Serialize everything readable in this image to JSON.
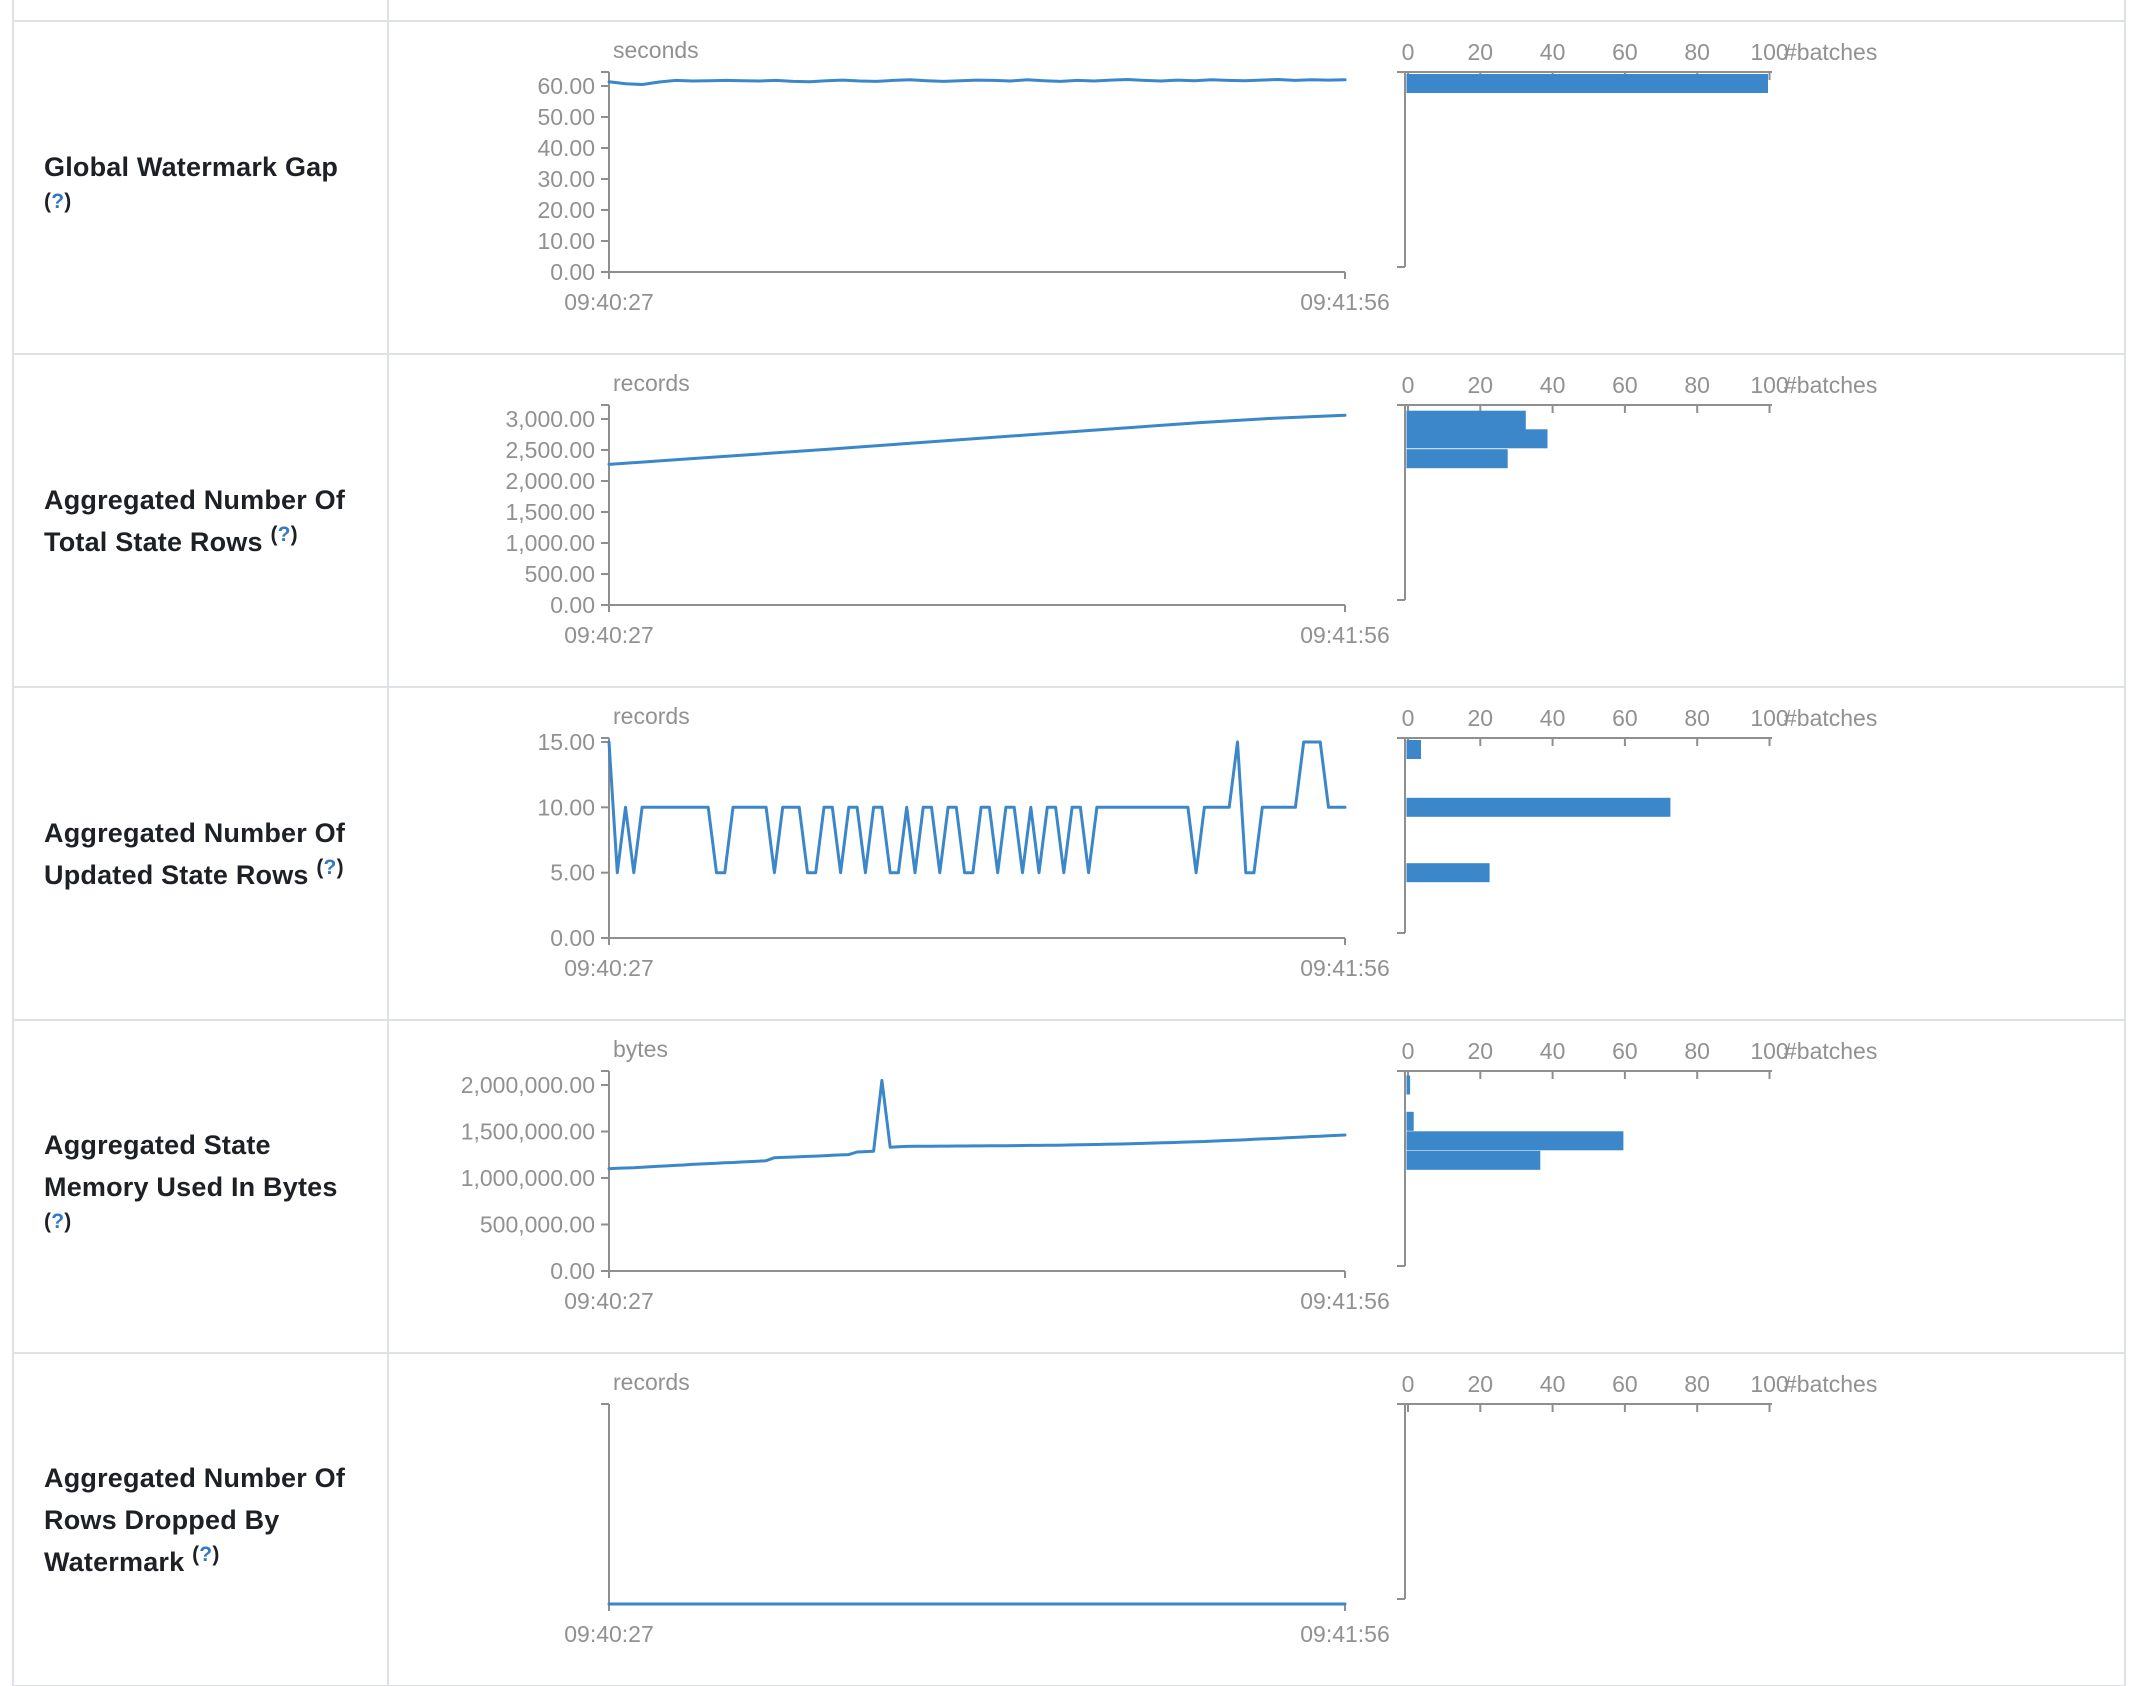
{
  "theme": {
    "accent_blue": "#3b87c9",
    "axis_gray": "#8f8f8f",
    "chart_text_gray": "#919191",
    "label_dark": "#1d2125",
    "help_blue": "#3178c6",
    "row_border": "#dee2e6"
  },
  "help_badge": {
    "open": "(",
    "mark": "?",
    "close": ")"
  },
  "chart_data": [
    {
      "label": "Global Watermark Gap",
      "timeline": {
        "type": "line",
        "unit": "seconds",
        "x_ticks": [
          "09:40:27",
          "09:41:56"
        ],
        "ylim": [
          0,
          60
        ],
        "y_ticks": [
          {
            "v": 0,
            "label": "0.00"
          },
          {
            "v": 10,
            "label": "10.00"
          },
          {
            "v": 20,
            "label": "20.00"
          },
          {
            "v": 30,
            "label": "30.00"
          },
          {
            "v": 40,
            "label": "40.00"
          },
          {
            "v": 50,
            "label": "50.00"
          },
          {
            "v": 60,
            "label": "60.00"
          }
        ],
        "values": [
          61.4,
          60.7,
          60.5,
          61.3,
          61.8,
          61.6,
          61.7,
          61.8,
          61.7,
          61.6,
          61.8,
          61.5,
          61.4,
          61.7,
          61.9,
          61.6,
          61.5,
          61.8,
          62.0,
          61.7,
          61.5,
          61.7,
          61.9,
          61.8,
          61.6,
          62.0,
          61.7,
          61.5,
          61.8,
          61.6,
          61.9,
          62.1,
          61.8,
          61.6,
          61.9,
          61.7,
          62.0,
          61.8,
          61.7,
          61.9,
          62.1,
          61.8,
          62.0,
          61.9,
          62.0
        ]
      },
      "histogram": {
        "type": "bar",
        "xlabel": "#batches",
        "xlim": [
          0,
          100
        ],
        "x_ticks": [
          0,
          20,
          40,
          60,
          80,
          100
        ],
        "bins": [
          {
            "center": 61.5,
            "count": 100
          }
        ]
      }
    },
    {
      "label": "Aggregated Number Of Total State Rows",
      "timeline": {
        "type": "line",
        "unit": "records",
        "x_ticks": [
          "09:40:27",
          "09:41:56"
        ],
        "ylim": [
          0,
          3000
        ],
        "y_ticks": [
          {
            "v": 0,
            "label": "0.00"
          },
          {
            "v": 500,
            "label": "500.00"
          },
          {
            "v": 1000,
            "label": "1,000.00"
          },
          {
            "v": 1500,
            "label": "1,500.00"
          },
          {
            "v": 2000,
            "label": "2,000.00"
          },
          {
            "v": 2500,
            "label": "2,500.00"
          },
          {
            "v": 3000,
            "label": "3,000.00"
          }
        ],
        "values": [
          2268,
          2350,
          2432,
          2515,
          2600,
          2685,
          2770,
          2855,
          2940,
          3010,
          3060
        ]
      },
      "histogram": {
        "type": "bar",
        "xlabel": "#batches",
        "xlim": [
          0,
          100
        ],
        "x_ticks": [
          0,
          20,
          40,
          60,
          80,
          100
        ],
        "bins": [
          {
            "center": 2980,
            "count": 33
          },
          {
            "center": 2680,
            "count": 39
          },
          {
            "center": 2360,
            "count": 28
          }
        ]
      }
    },
    {
      "label": "Aggregated Number Of Updated State Rows",
      "timeline": {
        "type": "line",
        "unit": "records",
        "x_ticks": [
          "09:40:27",
          "09:41:56"
        ],
        "ylim": [
          0,
          15
        ],
        "y_ticks": [
          {
            "v": 0,
            "label": "0.00"
          },
          {
            "v": 5,
            "label": "5.00"
          },
          {
            "v": 10,
            "label": "10.00"
          },
          {
            "v": 15,
            "label": "15.00"
          }
        ],
        "values": [
          15,
          5,
          10,
          5,
          10,
          10,
          10,
          10,
          10,
          10,
          10,
          10,
          10,
          5,
          5,
          10,
          10,
          10,
          10,
          10,
          5,
          10,
          10,
          10,
          5,
          5,
          10,
          10,
          5,
          10,
          10,
          5,
          10,
          10,
          5,
          5,
          10,
          5,
          10,
          10,
          5,
          10,
          10,
          5,
          5,
          10,
          10,
          5,
          10,
          10,
          5,
          10,
          5,
          10,
          10,
          5,
          10,
          10,
          5,
          10,
          10,
          10,
          10,
          10,
          10,
          10,
          10,
          10,
          10,
          10,
          10,
          5,
          10,
          10,
          10,
          10,
          15,
          5,
          5,
          10,
          10,
          10,
          10,
          10,
          15,
          15,
          15,
          10,
          10,
          10
        ]
      },
      "histogram": {
        "type": "bar",
        "xlabel": "#batches",
        "xlim": [
          0,
          100
        ],
        "x_ticks": [
          0,
          20,
          40,
          60,
          80,
          100
        ],
        "bins": [
          {
            "center": 15,
            "count": 4
          },
          {
            "center": 10,
            "count": 73
          },
          {
            "center": 5,
            "count": 23
          }
        ]
      }
    },
    {
      "label": "Aggregated State Memory Used In Bytes",
      "timeline": {
        "type": "line",
        "unit": "bytes",
        "x_ticks": [
          "09:40:27",
          "09:41:56"
        ],
        "ylim": [
          0,
          2000000
        ],
        "y_ticks": [
          {
            "v": 0,
            "label": "0.00"
          },
          {
            "v": 500000,
            "label": "500,000.00"
          },
          {
            "v": 1000000,
            "label": "1,000,000.00"
          },
          {
            "v": 1500000,
            "label": "1,500,000.00"
          },
          {
            "v": 2000000,
            "label": "2,000,000.00"
          }
        ],
        "values": [
          1100000,
          1104000,
          1108000,
          1111000,
          1116000,
          1121000,
          1126000,
          1130000,
          1135000,
          1140000,
          1146000,
          1151000,
          1155000,
          1158000,
          1163000,
          1167000,
          1172000,
          1176000,
          1181000,
          1186000,
          1218000,
          1221000,
          1225000,
          1228000,
          1232000,
          1236000,
          1240000,
          1244000,
          1248000,
          1252000,
          1280000,
          1284000,
          1288000,
          2050000,
          1330000,
          1336000,
          1340000,
          1341000,
          1342000,
          1342000,
          1343000,
          1343000,
          1344000,
          1344000,
          1345000,
          1345000,
          1346000,
          1346000,
          1347000,
          1348000,
          1349000,
          1350000,
          1351000,
          1352000,
          1353000,
          1354000,
          1356000,
          1357000,
          1359000,
          1360000,
          1362000,
          1364000,
          1366000,
          1368000,
          1371000,
          1373000,
          1376000,
          1378000,
          1381000,
          1384000,
          1387000,
          1390000,
          1393000,
          1397000,
          1400000,
          1404000,
          1408000,
          1412000,
          1416000,
          1420000,
          1424000,
          1428000,
          1432000,
          1437000,
          1441000,
          1446000,
          1450000,
          1455000,
          1458000,
          1462000
        ]
      },
      "histogram": {
        "type": "bar",
        "xlabel": "#batches",
        "xlim": [
          0,
          100
        ],
        "x_ticks": [
          0,
          20,
          40,
          60,
          80,
          100
        ],
        "bins": [
          {
            "center": 2000000,
            "count": 1
          },
          {
            "center": 1610000,
            "count": 2
          },
          {
            "center": 1400000,
            "count": 60
          },
          {
            "center": 1190000,
            "count": 37
          }
        ]
      }
    },
    {
      "label": "Aggregated Number Of Rows Dropped By Watermark",
      "timeline": {
        "type": "line",
        "unit": "records",
        "x_ticks": [
          "09:40:27",
          "09:41:56"
        ],
        "ylim": [
          0,
          1
        ],
        "y_ticks": [],
        "values": [
          0,
          0
        ]
      },
      "histogram": {
        "type": "bar",
        "xlabel": "#batches",
        "xlim": [
          0,
          100
        ],
        "x_ticks": [
          0,
          20,
          40,
          60,
          80,
          100
        ],
        "bins": []
      }
    }
  ]
}
